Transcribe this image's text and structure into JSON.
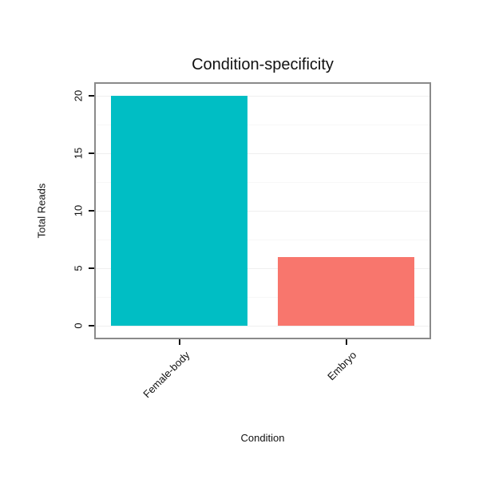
{
  "chart_data": {
    "type": "bar",
    "title": "Condition-specificity",
    "xlabel": "Condition",
    "ylabel": "Total Reads",
    "categories": [
      "Female-body",
      "Embryo"
    ],
    "values": [
      20,
      6
    ],
    "bar_colors": [
      "#00BEC4",
      "#F8766D"
    ],
    "yticks": [
      0,
      5,
      10,
      15,
      20
    ],
    "ylim": [
      0,
      21
    ],
    "grid": "horizontal",
    "legend": "none",
    "panel_border_color": "#8a8a8a"
  }
}
